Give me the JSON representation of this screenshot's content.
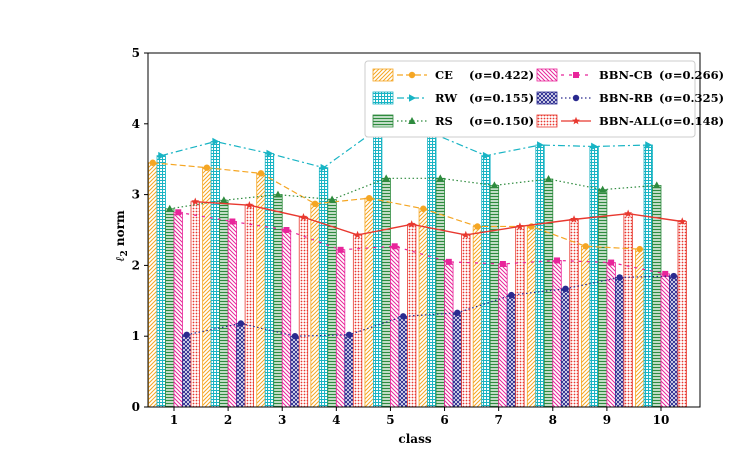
{
  "chart_data": {
    "type": "bar",
    "title": "",
    "xlabel": "class",
    "ylabel": "ℓ",
    "ylabel_sub": "2",
    "ylabel_suffix": " norm",
    "ylim": [
      0,
      5
    ],
    "yticks": [
      "0",
      "1",
      "2",
      "3",
      "4",
      "5"
    ],
    "categories": [
      "1",
      "2",
      "3",
      "4",
      "5",
      "6",
      "7",
      "8",
      "9",
      "10"
    ],
    "grid": false,
    "legend_position": "top-right",
    "series": [
      {
        "name": "CE",
        "sigma": "(σ=0.422)",
        "color": "#f5a623",
        "pattern": "hatch-diag",
        "line_style": "dashed",
        "marker": "circle",
        "values": [
          3.45,
          3.38,
          3.3,
          2.87,
          2.95,
          2.8,
          2.55,
          2.55,
          2.27,
          2.23
        ]
      },
      {
        "name": "RW",
        "sigma": "(σ=0.155)",
        "color": "#19b4c4",
        "pattern": "grid",
        "line_style": "dashdot",
        "marker": "triangle-right",
        "values": [
          3.55,
          3.75,
          3.58,
          3.38,
          3.93,
          3.87,
          3.55,
          3.7,
          3.68,
          3.7
        ]
      },
      {
        "name": "RS",
        "sigma": "(σ=0.150)",
        "color": "#2e8b3e",
        "pattern": "hlines",
        "line_style": "dotted",
        "marker": "triangle-up",
        "values": [
          2.8,
          2.92,
          3.0,
          2.93,
          3.23,
          3.23,
          3.13,
          3.22,
          3.07,
          3.13
        ]
      },
      {
        "name": "BBN-CB",
        "sigma": "(σ=0.266)",
        "color": "#e8259a",
        "pattern": "hatch-back",
        "line_style": "dashed-sparse",
        "marker": "square",
        "values": [
          2.75,
          2.62,
          2.5,
          2.22,
          2.27,
          2.05,
          2.02,
          2.07,
          2.04,
          1.88
        ]
      },
      {
        "name": "BBN-RB",
        "sigma": "(σ=0.325)",
        "color": "#2a2a8f",
        "pattern": "crosshatch",
        "line_style": "dotted",
        "marker": "circle",
        "values": [
          1.02,
          1.18,
          1.0,
          1.02,
          1.28,
          1.33,
          1.58,
          1.67,
          1.83,
          1.85
        ]
      },
      {
        "name": "BBN-ALL",
        "sigma": "(σ=0.148)",
        "color": "#e8382f",
        "pattern": "dots",
        "line_style": "solid",
        "marker": "star",
        "values": [
          2.9,
          2.85,
          2.68,
          2.43,
          2.58,
          2.43,
          2.55,
          2.65,
          2.73,
          2.62
        ]
      }
    ]
  }
}
